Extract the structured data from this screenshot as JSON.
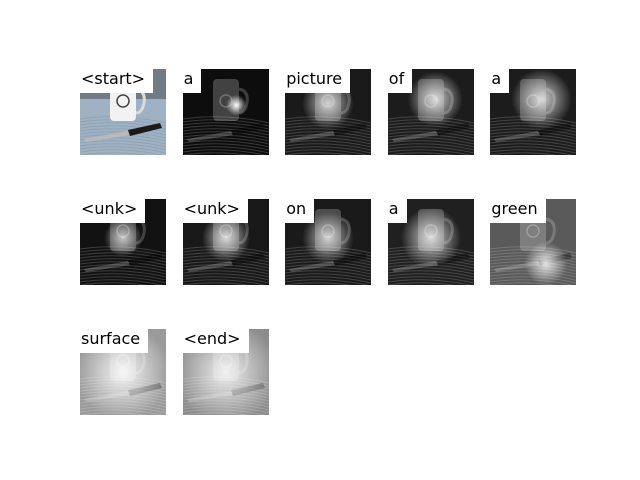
{
  "cells": [
    {
      "word": "<start>",
      "kind": "photo"
    },
    {
      "word": "a",
      "kind": "attn",
      "spot": [
        0.62,
        0.42
      ],
      "spread": 0.12,
      "bright": 1.0,
      "bg": "#0d0d0d"
    },
    {
      "word": "picture",
      "kind": "attn",
      "spot": [
        0.5,
        0.4
      ],
      "spread": 0.3,
      "bright": 0.75,
      "bg": "#1a1a1a"
    },
    {
      "word": "of",
      "kind": "attn",
      "spot": [
        0.55,
        0.35
      ],
      "spread": 0.32,
      "bright": 0.8,
      "bg": "#1c1c1c"
    },
    {
      "word": "a",
      "kind": "attn",
      "spot": [
        0.6,
        0.35
      ],
      "spread": 0.35,
      "bright": 0.8,
      "bg": "#1c1c1c"
    },
    {
      "word": "<unk>",
      "kind": "attn",
      "spot": [
        0.5,
        0.45
      ],
      "spread": 0.22,
      "bright": 0.7,
      "bg": "#121212"
    },
    {
      "word": "<unk>",
      "kind": "attn",
      "spot": [
        0.5,
        0.45
      ],
      "spread": 0.28,
      "bright": 0.8,
      "bg": "#181818"
    },
    {
      "word": "on",
      "kind": "attn",
      "spot": [
        0.5,
        0.45
      ],
      "spread": 0.3,
      "bright": 0.75,
      "bg": "#1a1a1a"
    },
    {
      "word": "a",
      "kind": "attn",
      "spot": [
        0.5,
        0.45
      ],
      "spread": 0.35,
      "bright": 0.8,
      "bg": "#202020"
    },
    {
      "word": "green",
      "kind": "attn",
      "spot": [
        0.65,
        0.75
      ],
      "spread": 0.25,
      "bright": 0.85,
      "bg": "#5a5a5a"
    },
    {
      "word": "surface",
      "kind": "attn",
      "spot": [
        0.5,
        0.5
      ],
      "spread": 0.55,
      "bright": 0.9,
      "bg": "#9a9a9a"
    },
    {
      "word": "<end>",
      "kind": "attn",
      "spot": [
        0.5,
        0.5
      ],
      "spread": 0.6,
      "bright": 0.85,
      "bg": "#8c8c8c"
    }
  ]
}
